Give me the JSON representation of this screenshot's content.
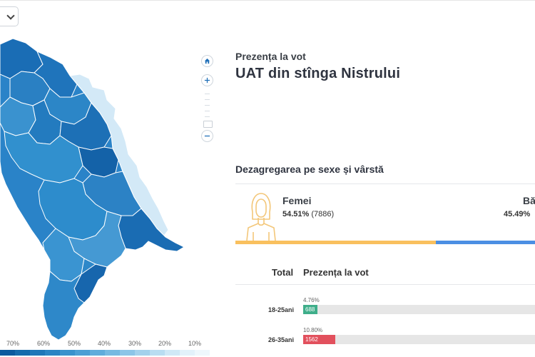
{
  "map": {
    "accent_dark": "#1f6fb8",
    "accent_light": "#d7ebf8",
    "controls": [
      "home-icon",
      "zoom-in-icon",
      "zoom-out-icon"
    ],
    "legend": {
      "labels": [
        "70%",
        "60%",
        "50%",
        "40%",
        "30%",
        "20%",
        "10%"
      ],
      "colors": [
        "#0b5a9e",
        "#156aab",
        "#1f77b8",
        "#2b84c3",
        "#3a92cc",
        "#4c9fd4",
        "#60acdb",
        "#76b9e1",
        "#8cc5e7",
        "#a3d1ec",
        "#b9ddf1",
        "#cfe8f6",
        "#e2f1fa",
        "#eef7fc"
      ]
    }
  },
  "header": {
    "subtitle": "Prezența la vot",
    "title": "UAT din stînga Nistrului"
  },
  "gender": {
    "section_title": "Dezagregarea pe sexe și vârstă",
    "female": {
      "label": "Femei",
      "percent": "54.51%",
      "count": "(7886)",
      "share": 0.5451,
      "color": "#f9c05e"
    },
    "male": {
      "label": "Bă",
      "percent": "45.49%",
      "share": 0.4549,
      "color": "#4b8fe3"
    }
  },
  "age_table": {
    "col_total": "Total",
    "col_turnout": "Prezența la vot",
    "rows": [
      {
        "label": "18-25ani",
        "percent": "4.76%",
        "count": "688",
        "share": 0.0476,
        "color": "#3fae8a"
      },
      {
        "label": "26-35ani",
        "percent": "10.80%",
        "count": "1562",
        "share": 0.108,
        "color": "#e2505d"
      }
    ]
  }
}
